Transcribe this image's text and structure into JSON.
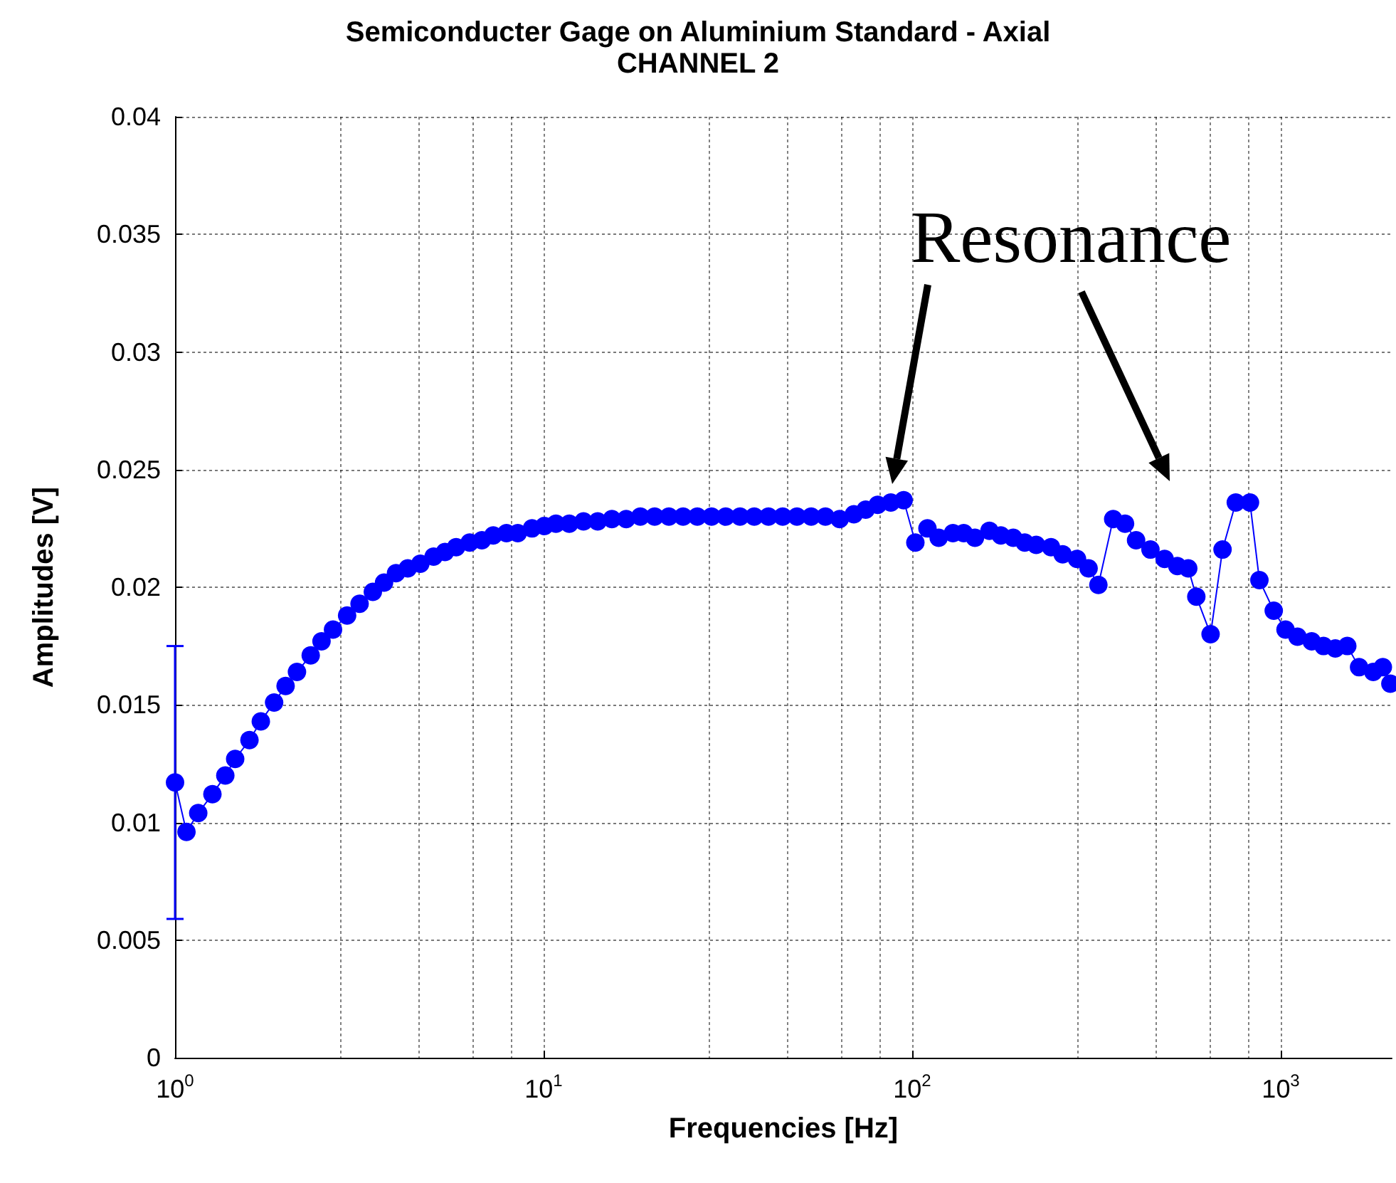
{
  "chart_data": {
    "type": "line",
    "title": "Semiconducter Gage on Aluminium Standard - Axial",
    "subtitle": "CHANNEL 2",
    "xlabel": "Frequencies [Hz]",
    "ylabel": "Amplitudes [V]",
    "annotations": [
      "Resonance"
    ],
    "log": "x",
    "grid": true,
    "marker": "circle",
    "line_style": "solid",
    "xlim": [
      1,
      2000
    ],
    "xticks": [
      {
        "value": 1,
        "label": "10$^{0}$"
      },
      {
        "value": 10,
        "label": "10$^{1}$"
      },
      {
        "value": 100,
        "label": "10$^{2}$"
      },
      {
        "value": 1000,
        "label": "10$^{3}$"
      }
    ],
    "ylim": [
      0,
      0.04
    ],
    "yticks": [
      0,
      0.005,
      0.01,
      0.015,
      0.02,
      0.025,
      0.03,
      0.035,
      0.04
    ],
    "series": [
      {
        "color": "#0000ff",
        "x": [
          1.0,
          1.074,
          1.156,
          1.263,
          1.369,
          1.456,
          1.592,
          1.709,
          1.857,
          1.995,
          2.142,
          2.334,
          2.497,
          2.683,
          2.93,
          3.167,
          3.441,
          3.69,
          3.977,
          4.28,
          4.63,
          5.03,
          5.4,
          5.79,
          6.3,
          6.8,
          7.3,
          7.93,
          8.51,
          9.3,
          10.05,
          10.8,
          11.74,
          12.83,
          14.02,
          15.32,
          16.75,
          18.3,
          20.01,
          21.87,
          23.9,
          26.12,
          28.55,
          31.2,
          34.11,
          37.28,
          40.74,
          44.53,
          48.68,
          53.2,
          58.15,
          63.56,
          69.46,
          74.8,
          80.6,
          87.5,
          94.8,
          102,
          110,
          118,
          129,
          138,
          148,
          162,
          174,
          188,
          202,
          217,
          238,
          256,
          280,
          301,
          320,
          351,
          378,
          405,
          443,
          484,
          524,
          561,
          590,
          645,
          695,
          755,
          825,
          875,
          957,
          1030,
          1110,
          1213,
          1306,
          1406,
          1515,
          1631,
          1782,
          1892,
          1983
        ],
        "values": [
          0.0117,
          0.0096,
          0.0104,
          0.0112,
          0.012,
          0.0127,
          0.0135,
          0.0143,
          0.0151,
          0.0158,
          0.0164,
          0.0171,
          0.0177,
          0.0182,
          0.0188,
          0.0193,
          0.0198,
          0.0202,
          0.0206,
          0.0208,
          0.021,
          0.0213,
          0.0215,
          0.0217,
          0.0219,
          0.022,
          0.0222,
          0.0223,
          0.0223,
          0.0225,
          0.0226,
          0.0227,
          0.0227,
          0.0228,
          0.0228,
          0.0229,
          0.0229,
          0.023,
          0.023,
          0.023,
          0.023,
          0.023,
          0.023,
          0.023,
          0.023,
          0.023,
          0.023,
          0.023,
          0.023,
          0.023,
          0.023,
          0.0229,
          0.0231,
          0.0233,
          0.0235,
          0.0236,
          0.0237,
          0.0219,
          0.0225,
          0.0221,
          0.0223,
          0.0223,
          0.0221,
          0.0224,
          0.0222,
          0.0221,
          0.0219,
          0.0218,
          0.0217,
          0.0214,
          0.0212,
          0.0208,
          0.0201,
          0.0229,
          0.0227,
          0.022,
          0.0216,
          0.0212,
          0.0209,
          0.0208,
          0.0196,
          0.018,
          0.0216,
          0.0236,
          0.0236,
          0.0203,
          0.019,
          0.0182,
          0.0179,
          0.0177,
          0.0175,
          0.0174,
          0.0175,
          0.0166,
          0.0164,
          0.0166,
          0.0159
        ],
        "errors": [
          [
            0.0059,
            0.0175
          ],
          null,
          null,
          null,
          null,
          null,
          null,
          null,
          null,
          null,
          null,
          null,
          null,
          null,
          null,
          null,
          null,
          null,
          null,
          null,
          null,
          null,
          null,
          null,
          null,
          null,
          null,
          null,
          null,
          null,
          null,
          null,
          null,
          null,
          null,
          null,
          null,
          null,
          null,
          null,
          null,
          null,
          null,
          null,
          null,
          null,
          null,
          null,
          null,
          null,
          null,
          null,
          null,
          null,
          null,
          null,
          null,
          null,
          null,
          null,
          null,
          null,
          null,
          null,
          null,
          null,
          null,
          null,
          null,
          null,
          null,
          null,
          null,
          null,
          null,
          null,
          null,
          null,
          null,
          null,
          null,
          null,
          null,
          null,
          null,
          null,
          null,
          null,
          null,
          null,
          null,
          null,
          null,
          null,
          null,
          null,
          null
        ]
      }
    ]
  }
}
